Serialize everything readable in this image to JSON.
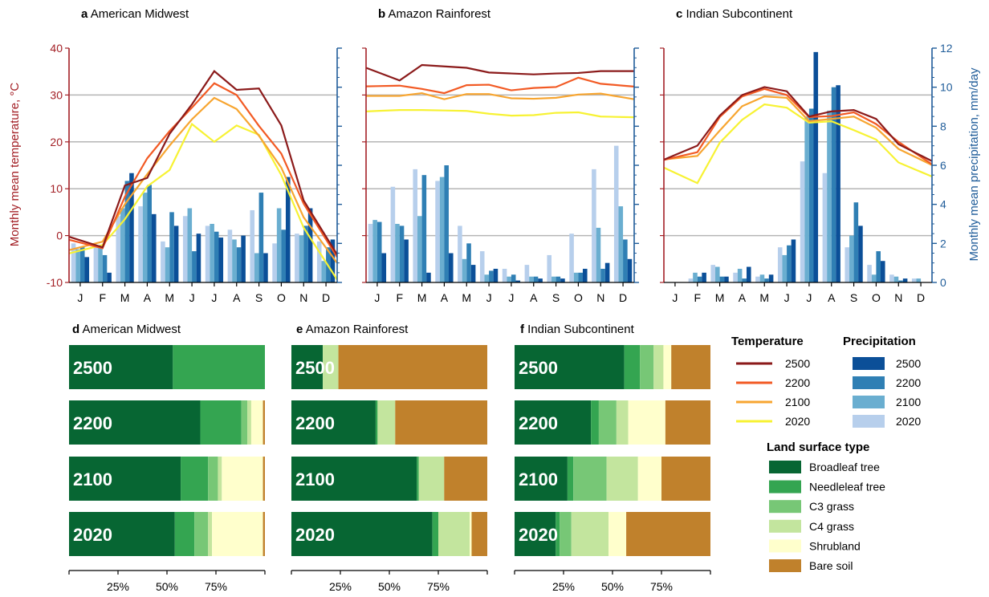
{
  "colors": {
    "temperature": {
      "2500": "#8b1a1a",
      "2200": "#f25a24",
      "2100": "#f7a530",
      "2020": "#f7f233"
    },
    "precipitation": {
      "2500": "#0b4f98",
      "2200": "#2f7fb4",
      "2100": "#6aaed0",
      "2020": "#b7cfec"
    },
    "land": [
      "#076633",
      "#34a551",
      "#77c776",
      "#c3e59e",
      "#ffffcc",
      "#c0812c"
    ],
    "axis_left": "#a32026",
    "axis_right": "#1f5c99",
    "grid": "#b5b5b5"
  },
  "climate": {
    "y_left_label": "Monthly mean temperature, °C",
    "y_right_label": "Monthly mean precipitation, mm/day",
    "y_left_ticks": [
      "-10",
      "0",
      "10",
      "20",
      "30",
      "40"
    ],
    "y_right_ticks": [
      "0",
      "2",
      "4",
      "6",
      "8",
      "10",
      "12"
    ],
    "panels": [
      {
        "letter": "a",
        "title": "American Midwest"
      },
      {
        "letter": "b",
        "title": "Amazon Rainforest"
      },
      {
        "letter": "c",
        "title": "Indian Subcontinent"
      }
    ]
  },
  "landcover": {
    "panels": [
      {
        "letter": "d",
        "title": "American Midwest"
      },
      {
        "letter": "e",
        "title": "Amazon Rainforest"
      },
      {
        "letter": "f",
        "title": "Indian Subcontinent"
      }
    ],
    "x_ticks": [
      "25%",
      "50%",
      "75%"
    ]
  },
  "legend": {
    "temperature_title": "Temperature",
    "precipitation_title": "Precipitation",
    "years": [
      "2500",
      "2200",
      "2100",
      "2020"
    ],
    "land_title": "Land surface type",
    "land_types": [
      "Broadleaf tree",
      "Needleleaf tree",
      "C3 grass",
      "C4 grass",
      "Shrubland",
      "Bare soil"
    ]
  },
  "chart_data": [
    {
      "type": "line",
      "panel": "a",
      "title": "American Midwest",
      "categories": [
        "J",
        "F",
        "M",
        "A",
        "M",
        "J",
        "J",
        "A",
        "S",
        "O",
        "N",
        "D"
      ],
      "ylabel": "Monthly mean temperature, °C",
      "ylim": [
        -10,
        40
      ],
      "y2label": "Monthly mean precipitation, mm/day",
      "y2lim": [
        0,
        12
      ],
      "temperature": [
        {
          "name": "2500",
          "values": [
            -1.0,
            -2.5,
            10.7,
            12.3,
            21.7,
            28.0,
            35.1,
            31.1,
            31.4,
            23.5,
            7.5,
            -0.2
          ]
        },
        {
          "name": "2200",
          "values": [
            -1.5,
            -2.7,
            8.3,
            16.5,
            22.3,
            27.3,
            32.5,
            30.0,
            23.4,
            17.5,
            6.8,
            -0.8
          ]
        },
        {
          "name": "2100",
          "values": [
            -2.5,
            -1.3,
            6.7,
            13.1,
            19.2,
            24.8,
            29.4,
            27.0,
            21.3,
            14.5,
            3.9,
            -2.6
          ]
        },
        {
          "name": "2020",
          "values": [
            -3.2,
            -2.0,
            3.5,
            10.5,
            14.0,
            23.8,
            20.0,
            23.5,
            21.5,
            12.9,
            1.7,
            -5.7
          ]
        }
      ],
      "precipitation": [
        {
          "name": "2020",
          "values": [
            2.0,
            1.9,
            3.4,
            3.9,
            2.1,
            3.4,
            2.9,
            2.7,
            3.7,
            2.0,
            2.5,
            2.1
          ]
        },
        {
          "name": "2100",
          "values": [
            1.7,
            1.8,
            3.8,
            4.6,
            1.8,
            3.8,
            3.0,
            2.2,
            1.5,
            3.8,
            2.4,
            1.1
          ]
        },
        {
          "name": "2200",
          "values": [
            1.8,
            1.4,
            5.2,
            5.0,
            3.6,
            1.6,
            2.6,
            1.8,
            4.6,
            2.7,
            2.9,
            1.8
          ]
        },
        {
          "name": "2500",
          "values": [
            1.3,
            0.5,
            5.6,
            3.5,
            2.9,
            2.5,
            2.3,
            2.4,
            1.5,
            5.4,
            3.8,
            2.2
          ]
        }
      ]
    },
    {
      "type": "line",
      "panel": "b",
      "title": "Amazon Rainforest",
      "categories": [
        "J",
        "F",
        "M",
        "A",
        "M",
        "J",
        "J",
        "A",
        "S",
        "O",
        "N",
        "D"
      ],
      "ylabel": "Monthly mean temperature, °C",
      "ylim": [
        -10,
        40
      ],
      "y2label": "Monthly mean precipitation, mm/day",
      "y2lim": [
        0,
        12
      ],
      "temperature": [
        {
          "name": "2500",
          "values": [
            34.9,
            33.1,
            36.4,
            36.1,
            35.8,
            34.8,
            34.6,
            34.4,
            34.6,
            34.7,
            35.1,
            35.1
          ]
        },
        {
          "name": "2200",
          "values": [
            31.9,
            32.0,
            31.3,
            30.4,
            32.1,
            32.2,
            31.0,
            31.5,
            31.7,
            33.7,
            32.4,
            32.0
          ]
        },
        {
          "name": "2100",
          "values": [
            29.8,
            29.8,
            30.4,
            29.1,
            30.2,
            30.2,
            29.3,
            29.2,
            29.4,
            30.1,
            30.3,
            29.5
          ]
        },
        {
          "name": "2020",
          "values": [
            26.6,
            26.8,
            26.8,
            26.7,
            26.6,
            26.0,
            25.6,
            25.7,
            26.2,
            26.3,
            25.4,
            25.3
          ]
        }
      ],
      "precipitation": [
        {
          "name": "2020",
          "values": [
            3.0,
            4.9,
            5.8,
            5.2,
            2.9,
            1.6,
            0.7,
            0.9,
            1.4,
            2.5,
            5.8,
            7.0
          ]
        },
        {
          "name": "2100",
          "values": [
            3.2,
            3.0,
            3.4,
            5.4,
            1.2,
            0.4,
            0.3,
            0.3,
            0.3,
            0.5,
            2.8,
            3.9
          ]
        },
        {
          "name": "2200",
          "values": [
            3.1,
            2.9,
            5.5,
            6.0,
            2.0,
            0.6,
            0.4,
            0.3,
            0.3,
            0.5,
            0.7,
            2.2
          ]
        },
        {
          "name": "2500",
          "values": [
            1.5,
            2.2,
            0.5,
            1.5,
            0.9,
            0.7,
            0.1,
            0.2,
            0.2,
            0.7,
            1.0,
            1.2
          ]
        }
      ]
    },
    {
      "type": "line",
      "panel": "c",
      "title": "Indian Subcontinent",
      "categories": [
        "J",
        "F",
        "M",
        "A",
        "M",
        "J",
        "J",
        "A",
        "S",
        "O",
        "N",
        "D"
      ],
      "ylabel": "Monthly mean temperature, °C",
      "ylim": [
        -10,
        40
      ],
      "y2label": "Monthly mean precipitation, mm/day",
      "y2lim": [
        0,
        12
      ],
      "temperature": [
        {
          "name": "2500",
          "values": [
            17.2,
            19.2,
            25.6,
            30.0,
            31.7,
            30.8,
            25.4,
            26.5,
            26.8,
            24.9,
            19.5,
            17.1
          ]
        },
        {
          "name": "2200",
          "values": [
            16.7,
            17.8,
            25.3,
            29.7,
            31.3,
            30.0,
            25.3,
            25.5,
            26.3,
            23.8,
            20.0,
            16.8
          ]
        },
        {
          "name": "2100",
          "values": [
            16.5,
            17.0,
            22.4,
            27.6,
            29.7,
            29.4,
            24.4,
            24.9,
            25.4,
            23.0,
            18.5,
            16.2
          ]
        },
        {
          "name": "2020",
          "values": [
            13.4,
            11.2,
            19.8,
            24.7,
            28.0,
            27.3,
            24.1,
            24.4,
            22.5,
            20.5,
            15.6,
            13.6
          ]
        }
      ],
      "precipitation": [
        {
          "name": "2020",
          "values": [
            0.0,
            0.2,
            0.9,
            0.5,
            0.3,
            1.8,
            6.2,
            5.6,
            1.8,
            0.9,
            0.4,
            0.2
          ]
        },
        {
          "name": "2100",
          "values": [
            0.0,
            0.5,
            0.8,
            0.7,
            0.4,
            1.4,
            8.5,
            8.8,
            2.4,
            0.4,
            0.3,
            0.2
          ]
        },
        {
          "name": "2200",
          "values": [
            0.0,
            0.3,
            0.3,
            0.2,
            0.2,
            1.9,
            8.9,
            10.0,
            4.1,
            1.6,
            0.1,
            0.0
          ]
        },
        {
          "name": "2500",
          "values": [
            0.0,
            0.5,
            0.3,
            0.8,
            0.4,
            2.2,
            11.8,
            10.1,
            2.9,
            1.1,
            0.2,
            0.0
          ]
        }
      ]
    },
    {
      "type": "bar",
      "orientation": "horizontal-stacked",
      "panel": "d",
      "title": "American Midwest",
      "categories": [
        "2500",
        "2200",
        "2100",
        "2020"
      ],
      "xlim": [
        0,
        100
      ],
      "series": [
        {
          "name": "Broadleaf tree",
          "values": [
            53,
            67,
            57,
            54
          ]
        },
        {
          "name": "Needleleaf tree",
          "values": [
            47,
            21,
            14,
            10
          ]
        },
        {
          "name": "C3 grass",
          "values": [
            0,
            3,
            5,
            7
          ]
        },
        {
          "name": "C4 grass",
          "values": [
            0,
            2,
            2,
            2
          ]
        },
        {
          "name": "Shrubland",
          "values": [
            0,
            6,
            21,
            26
          ]
        },
        {
          "name": "Bare soil",
          "values": [
            0,
            1,
            1,
            1
          ]
        }
      ]
    },
    {
      "type": "bar",
      "orientation": "horizontal-stacked",
      "panel": "e",
      "title": "Amazon Rainforest",
      "categories": [
        "2500",
        "2200",
        "2100",
        "2020"
      ],
      "xlim": [
        0,
        100
      ],
      "series": [
        {
          "name": "Broadleaf tree",
          "values": [
            16,
            43,
            64,
            72
          ]
        },
        {
          "name": "Needleleaf tree",
          "values": [
            0,
            1,
            1,
            3
          ]
        },
        {
          "name": "C3 grass",
          "values": [
            0,
            0,
            0,
            0
          ]
        },
        {
          "name": "C4 grass",
          "values": [
            8,
            9,
            13,
            16
          ]
        },
        {
          "name": "Shrubland",
          "values": [
            0,
            0,
            0,
            1
          ]
        },
        {
          "name": "Bare soil",
          "values": [
            76,
            47,
            22,
            8
          ]
        }
      ]
    },
    {
      "type": "bar",
      "orientation": "horizontal-stacked",
      "panel": "f",
      "title": "Indian Subcontinent",
      "categories": [
        "2500",
        "2200",
        "2100",
        "2020"
      ],
      "xlim": [
        0,
        100
      ],
      "series": [
        {
          "name": "Broadleaf tree",
          "values": [
            56,
            39,
            27,
            21
          ]
        },
        {
          "name": "Needleleaf tree",
          "values": [
            8,
            4,
            3,
            2
          ]
        },
        {
          "name": "C3 grass",
          "values": [
            7,
            9,
            17,
            6
          ]
        },
        {
          "name": "C4 grass",
          "values": [
            5,
            6,
            16,
            19
          ]
        },
        {
          "name": "Shrubland",
          "values": [
            4,
            19,
            12,
            9
          ]
        },
        {
          "name": "Bare soil",
          "values": [
            20,
            23,
            25,
            43
          ]
        }
      ]
    }
  ]
}
